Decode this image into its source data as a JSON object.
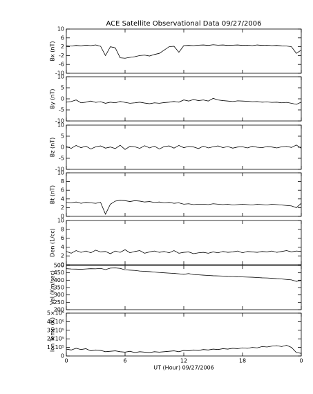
{
  "chart_data": [
    {
      "type": "line",
      "title": "ACE Satellite Observational Data   09/27/2006",
      "ylabel": "Bx (nT)",
      "ylim": [
        -10,
        10
      ],
      "yticks": [
        -10,
        -6,
        -2,
        2,
        6,
        10
      ],
      "x": [
        0,
        0.5,
        1,
        1.5,
        2,
        2.5,
        3,
        3.5,
        4,
        4.5,
        5,
        5.5,
        6,
        6.5,
        7,
        7.5,
        8,
        8.5,
        9,
        9.5,
        10,
        10.5,
        11,
        11.5,
        12,
        12.5,
        13,
        13.5,
        14,
        14.5,
        15,
        15.5,
        16,
        16.5,
        17,
        17.5,
        18,
        18.5,
        19,
        19.5,
        20,
        20.5,
        21,
        21.5,
        22,
        22.5,
        23,
        23.5,
        24
      ],
      "values": [
        2.5,
        2.3,
        2.6,
        2.4,
        2.7,
        2.5,
        2.8,
        2.2,
        -2.0,
        2.0,
        1.5,
        -3.0,
        -3.2,
        -2.8,
        -2.5,
        -2.0,
        -1.8,
        -2.2,
        -1.5,
        -1.0,
        0.5,
        2.0,
        2.2,
        -0.5,
        2.5,
        2.6,
        2.5,
        2.7,
        2.8,
        2.6,
        2.9,
        2.7,
        2.8,
        2.6,
        2.7,
        2.8,
        2.6,
        2.7,
        2.5,
        2.8,
        2.6,
        2.7,
        2.5,
        2.6,
        2.4,
        2.3,
        2.0,
        -1.0,
        0.5
      ]
    },
    {
      "type": "line",
      "ylabel": "By (nT)",
      "ylim": [
        -10,
        10
      ],
      "yticks": [
        -10,
        -5,
        0,
        5,
        10
      ],
      "x": [
        0,
        0.5,
        1,
        1.5,
        2,
        2.5,
        3,
        3.5,
        4,
        4.5,
        5,
        5.5,
        6,
        6.5,
        7,
        7.5,
        8,
        8.5,
        9,
        9.5,
        10,
        10.5,
        11,
        11.5,
        12,
        12.5,
        13,
        13.5,
        14,
        14.5,
        15,
        15.5,
        16,
        16.5,
        17,
        17.5,
        18,
        18.5,
        19,
        19.5,
        20,
        20.5,
        21,
        21.5,
        22,
        22.5,
        23,
        23.5,
        24
      ],
      "values": [
        -1.5,
        -1.2,
        -0.5,
        -1.8,
        -1.5,
        -1.0,
        -1.6,
        -1.3,
        -2.0,
        -1.5,
        -1.8,
        -1.2,
        -1.6,
        -2.0,
        -1.8,
        -1.5,
        -1.9,
        -2.2,
        -1.8,
        -2.0,
        -1.7,
        -1.5,
        -1.2,
        -1.5,
        -0.5,
        -1.0,
        -0.3,
        -0.8,
        -0.5,
        -1.0,
        0.2,
        -0.5,
        -0.8,
        -1.0,
        -1.2,
        -0.9,
        -1.0,
        -1.1,
        -1.3,
        -1.2,
        -1.5,
        -1.4,
        -1.6,
        -1.5,
        -1.8,
        -1.6,
        -2.0,
        -2.5,
        -1.5
      ]
    },
    {
      "type": "line",
      "ylabel": "Bz (nT)",
      "ylim": [
        -10,
        10
      ],
      "yticks": [
        -10,
        -5,
        0,
        5,
        10
      ],
      "x": [
        0,
        0.5,
        1,
        1.5,
        2,
        2.5,
        3,
        3.5,
        4,
        4.5,
        5,
        5.5,
        6,
        6.5,
        7,
        7.5,
        8,
        8.5,
        9,
        9.5,
        10,
        10.5,
        11,
        11.5,
        12,
        12.5,
        13,
        13.5,
        14,
        14.5,
        15,
        15.5,
        16,
        16.5,
        17,
        17.5,
        18,
        18.5,
        19,
        19.5,
        20,
        20.5,
        21,
        21.5,
        22,
        22.5,
        23,
        23.5,
        24
      ],
      "values": [
        0.3,
        -0.5,
        0.8,
        -0.2,
        0.5,
        -0.8,
        0.2,
        0.6,
        -0.4,
        0.1,
        -0.6,
        0.9,
        -1.0,
        0.4,
        0.2,
        -0.5,
        0.7,
        -0.3,
        0.5,
        -0.8,
        0.3,
        0.6,
        -0.4,
        0.8,
        -0.2,
        0.4,
        0.1,
        -0.6,
        0.5,
        -0.3,
        0.2,
        0.6,
        -0.2,
        0.3,
        -0.4,
        0.1,
        0.2,
        -0.3,
        0.4,
        0.0,
        -0.2,
        0.3,
        0.1,
        -0.3,
        0.2,
        0.4,
        -0.1,
        1.0,
        -0.5
      ]
    },
    {
      "type": "line",
      "ylabel": "Bt (nT)",
      "ylim": [
        0,
        10
      ],
      "yticks": [
        0,
        2,
        4,
        6,
        8,
        10
      ],
      "x": [
        0,
        0.5,
        1,
        1.5,
        2,
        2.5,
        3,
        3.5,
        4,
        4.5,
        5,
        5.5,
        6,
        6.5,
        7,
        7.5,
        8,
        8.5,
        9,
        9.5,
        10,
        10.5,
        11,
        11.5,
        12,
        12.5,
        13,
        13.5,
        14,
        14.5,
        15,
        15.5,
        16,
        16.5,
        17,
        17.5,
        18,
        18.5,
        19,
        19.5,
        20,
        20.5,
        21,
        21.5,
        22,
        22.5,
        23,
        23.5,
        24
      ],
      "values": [
        3.2,
        3.1,
        3.3,
        3.0,
        3.2,
        3.1,
        3.0,
        3.2,
        0.5,
        2.8,
        3.5,
        3.7,
        3.6,
        3.4,
        3.6,
        3.5,
        3.3,
        3.4,
        3.2,
        3.3,
        3.1,
        3.2,
        3.0,
        3.1,
        2.8,
        2.9,
        2.7,
        2.8,
        2.8,
        2.7,
        2.9,
        2.8,
        2.7,
        2.8,
        2.6,
        2.7,
        2.8,
        2.7,
        2.6,
        2.8,
        2.7,
        2.6,
        2.8,
        2.7,
        2.6,
        2.5,
        2.4,
        2.0,
        3.0
      ]
    },
    {
      "type": "line",
      "ylabel": "Den (1/cc)",
      "ylim": [
        0,
        10
      ],
      "yticks": [
        0,
        2,
        4,
        6,
        8,
        10
      ],
      "x": [
        0,
        0.5,
        1,
        1.5,
        2,
        2.5,
        3,
        3.5,
        4,
        4.5,
        5,
        5.5,
        6,
        6.5,
        7,
        7.5,
        8,
        8.5,
        9,
        9.5,
        10,
        10.5,
        11,
        11.5,
        12,
        12.5,
        13,
        13.5,
        14,
        14.5,
        15,
        15.5,
        16,
        16.5,
        17,
        17.5,
        18,
        18.5,
        19,
        19.5,
        20,
        20.5,
        21,
        21.5,
        22,
        22.5,
        23,
        23.5,
        24
      ],
      "values": [
        3.0,
        2.6,
        3.2,
        2.8,
        3.1,
        2.7,
        3.3,
        2.9,
        3.0,
        2.5,
        3.1,
        2.8,
        3.4,
        2.7,
        3.0,
        3.2,
        2.6,
        2.9,
        3.1,
        2.8,
        3.0,
        2.7,
        3.2,
        2.6,
        2.8,
        2.9,
        2.5,
        2.7,
        2.8,
        2.6,
        2.9,
        2.7,
        3.0,
        2.8,
        2.9,
        3.1,
        2.7,
        3.0,
        2.9,
        2.8,
        3.0,
        2.9,
        3.1,
        2.8,
        3.0,
        3.2,
        2.9,
        3.1,
        3.0
      ]
    },
    {
      "type": "line",
      "ylabel": "Vel (Km/sec)",
      "ylim": [
        200,
        500
      ],
      "yticks": [
        200,
        250,
        300,
        350,
        400,
        450,
        500
      ],
      "x": [
        0,
        0.5,
        1,
        1.5,
        2,
        2.5,
        3,
        3.5,
        4,
        4.5,
        5,
        5.5,
        6,
        6.5,
        7,
        7.5,
        8,
        8.5,
        9,
        9.5,
        10,
        10.5,
        11,
        11.5,
        12,
        12.5,
        13,
        13.5,
        14,
        14.5,
        15,
        15.5,
        16,
        16.5,
        17,
        17.5,
        18,
        18.5,
        19,
        19.5,
        20,
        20.5,
        21,
        21.5,
        22,
        22.5,
        23,
        23.5,
        24
      ],
      "values": [
        478,
        476,
        475,
        474,
        476,
        478,
        477,
        480,
        472,
        482,
        483,
        480,
        470,
        468,
        466,
        462,
        460,
        458,
        455,
        452,
        450,
        448,
        446,
        443,
        440,
        445,
        438,
        436,
        434,
        432,
        430,
        429,
        428,
        426,
        425,
        423,
        422,
        421,
        420,
        418,
        416,
        415,
        413,
        410,
        408,
        405,
        402,
        392,
        398
      ]
    },
    {
      "type": "line",
      "ylabel": "Ion Temp (K)",
      "ylim": [
        0,
        500000
      ],
      "yticks": [
        0,
        {
          "value": 100000,
          "label": "1×10⁵"
        },
        {
          "value": 200000,
          "label": "2×10⁵"
        },
        {
          "value": 300000,
          "label": "3×10⁵"
        },
        {
          "value": 400000,
          "label": "4×10⁵"
        },
        {
          "value": 500000,
          "label": "5×10⁵"
        }
      ],
      "xlabel": "UT (Hour)   09/27/2006",
      "xlim": [
        0,
        24
      ],
      "xticks": [
        0,
        6,
        12,
        18,
        {
          "value": 24,
          "label": "0"
        }
      ],
      "x": [
        0,
        0.5,
        1,
        1.5,
        2,
        2.5,
        3,
        3.5,
        4,
        4.5,
        5,
        5.5,
        6,
        6.5,
        7,
        7.5,
        8,
        8.5,
        9,
        9.5,
        10,
        10.5,
        11,
        11.5,
        12,
        12.5,
        13,
        13.5,
        14,
        14.5,
        15,
        15.5,
        16,
        16.5,
        17,
        17.5,
        18,
        18.5,
        19,
        19.5,
        20,
        20.5,
        21,
        21.5,
        22,
        22.5,
        23,
        23.5,
        24
      ],
      "values": [
        80000,
        70000,
        90000,
        75000,
        85000,
        60000,
        70000,
        65000,
        50000,
        55000,
        60000,
        50000,
        45000,
        55000,
        40000,
        50000,
        45000,
        40000,
        50000,
        45000,
        50000,
        55000,
        60000,
        50000,
        65000,
        60000,
        70000,
        65000,
        75000,
        70000,
        80000,
        75000,
        85000,
        80000,
        90000,
        85000,
        95000,
        90000,
        100000,
        95000,
        110000,
        105000,
        115000,
        120000,
        110000,
        125000,
        100000,
        40000,
        30000
      ]
    }
  ]
}
